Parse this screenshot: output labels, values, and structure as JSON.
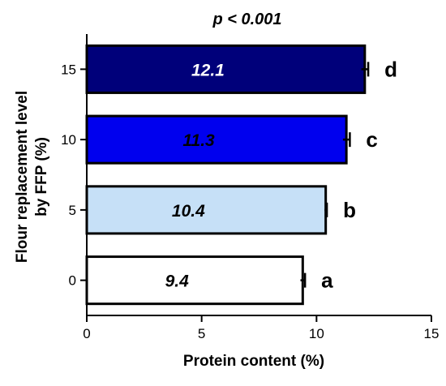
{
  "chart_data": {
    "type": "bar",
    "orientation": "horizontal",
    "title": "p < 0.001",
    "xlabel": "Protein content (%)",
    "ylabel_line1": "Flour replacement level",
    "ylabel_line2": "by FFP (%)",
    "xlim": [
      0,
      15
    ],
    "xticks": [
      "0",
      "5",
      "10",
      "15"
    ],
    "categories": [
      "0",
      "5",
      "10",
      "15"
    ],
    "values": [
      9.4,
      10.4,
      11.3,
      12.1
    ],
    "errors": [
      0.1,
      0.05,
      0.15,
      0.15
    ],
    "value_labels": [
      "9.4",
      "10.4",
      "11.3",
      "12.1"
    ],
    "significance": [
      "a",
      "b",
      "c",
      "d"
    ],
    "bar_colors": [
      "#ffffff",
      "#c6e0f7",
      "#0000ee",
      "#00007a"
    ],
    "label_colors": [
      "#000000",
      "#000000",
      "#000000",
      "#ffffff"
    ],
    "grid": false
  }
}
